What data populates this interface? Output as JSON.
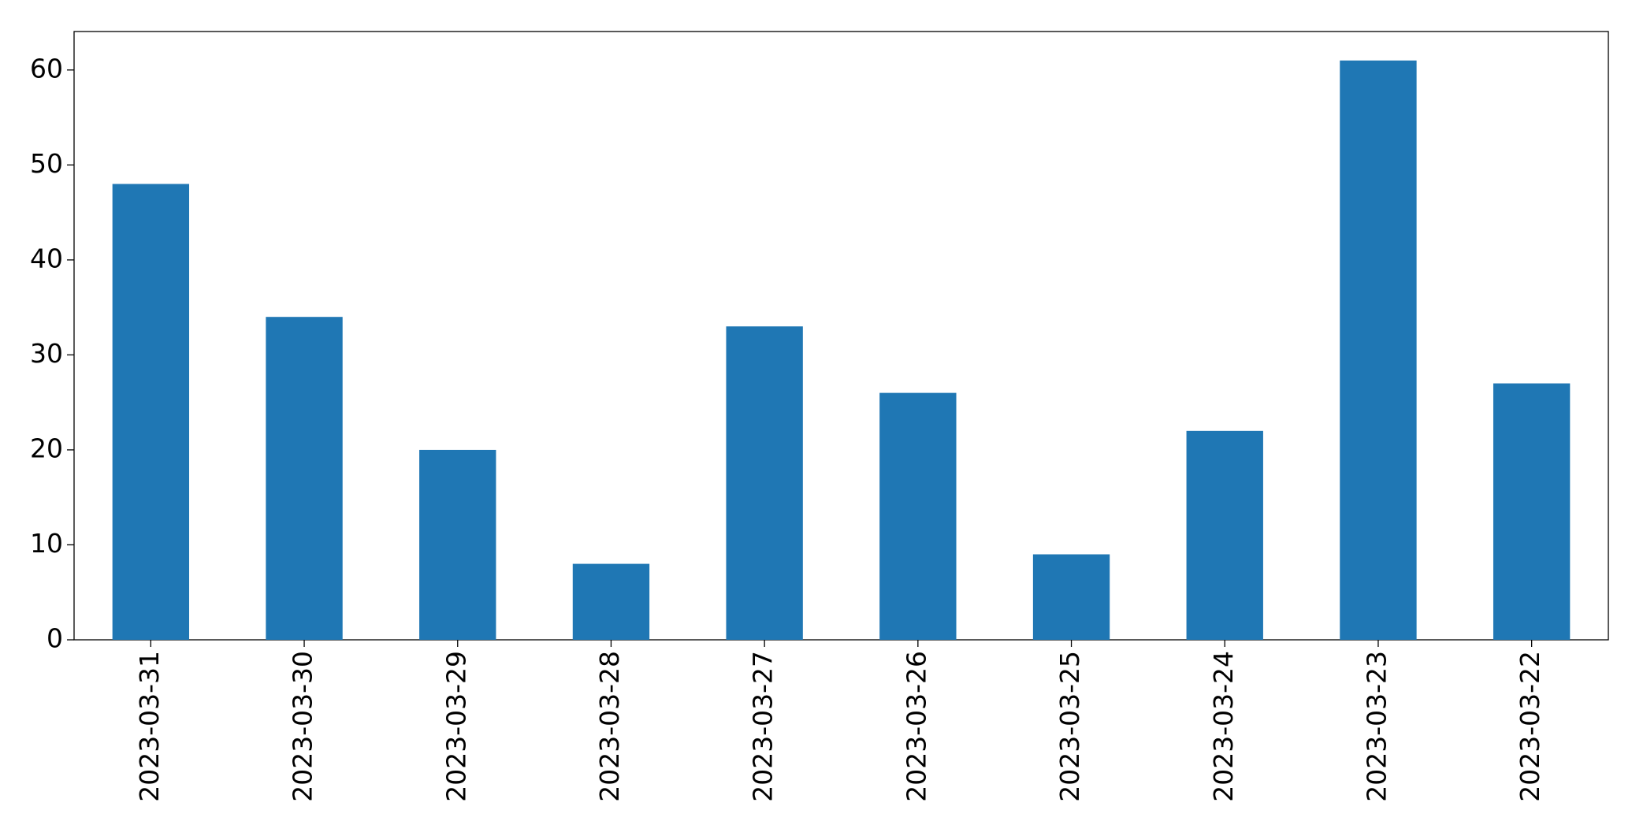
{
  "chart_data": {
    "type": "bar",
    "categories": [
      "2023-03-31",
      "2023-03-30",
      "2023-03-29",
      "2023-03-28",
      "2023-03-27",
      "2023-03-26",
      "2023-03-25",
      "2023-03-24",
      "2023-03-23",
      "2023-03-22"
    ],
    "values": [
      48,
      34,
      20,
      8,
      33,
      26,
      9,
      22,
      61,
      27
    ],
    "color": "#1f77b4",
    "ylim": [
      0,
      64.05
    ],
    "yticks": [
      0,
      10,
      20,
      30,
      40,
      50,
      60
    ],
    "grid": false
  }
}
